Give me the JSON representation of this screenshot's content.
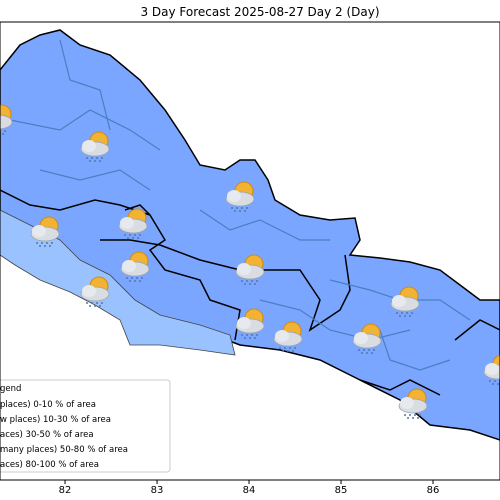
{
  "chart_data": {
    "type": "map",
    "title": "3 Day Forecast 2025-08-27 Day 2 (Day)",
    "xlim": [
      81.293,
      86.728
    ],
    "xticks": [
      82,
      83,
      84,
      85,
      86
    ],
    "legend": {
      "title": "gend",
      "entries": [
        "places)  0-10 % of area",
        "w places) 10-30 % of area",
        "aces) 30-50  % of area",
        "many places) 50-80 % of area",
        "aces) 80-100 % of area"
      ]
    }
  }
}
